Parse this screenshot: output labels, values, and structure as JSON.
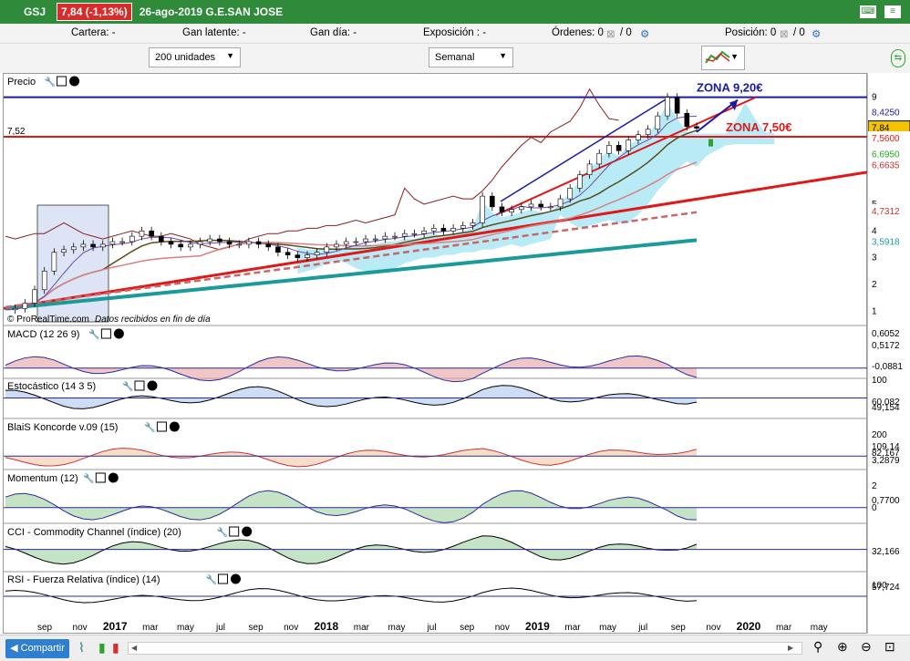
{
  "titlebar": {
    "ticker": "GSJ",
    "price_change": "7,84 (-1,13%)",
    "date_title": "26-ago-2019 G.E.SAN JOSE"
  },
  "infobar": {
    "cartera": "Cartera: -",
    "gan_latente": "Gan latente: -",
    "gan_dia": "Gan día: -",
    "exposicion": "Exposición : -",
    "ordenes": "Órdenes: 0",
    "ordenes2": "/ 0",
    "posicion": "Posición: 0",
    "posicion2": "/ 0"
  },
  "controls": {
    "units": "200 unidades",
    "period": "Semanal"
  },
  "footer": {
    "share": "Compartir"
  },
  "colors": {
    "up": "#2aa52a",
    "down": "#d03030",
    "blue_line": "#1a1aa8",
    "red_line": "#e01818",
    "teal": "#1b9a9a",
    "cloud": "#88ddee"
  },
  "chart_data": [
    {
      "type": "line",
      "title": "Precio",
      "annotations": [
        "ZONA 9,20€",
        "ZONA 7,50€"
      ],
      "left_label": "7,52",
      "credit": "© ProRealTime.com",
      "credit_note": "Datos recibidos en fin de día",
      "x_ticks": [
        "sep",
        "nov",
        "2017",
        "mar",
        "may",
        "jul",
        "sep",
        "nov",
        "2018",
        "mar",
        "may",
        "jul",
        "sep",
        "nov",
        "2019",
        "mar",
        "may",
        "jul",
        "sep",
        "nov",
        "2020",
        "mar",
        "may"
      ],
      "y_ticks": [
        1,
        2,
        3,
        4,
        5,
        9
      ],
      "ylim": [
        0.6,
        9.6
      ],
      "right_values": [
        {
          "v": "8,4250",
          "c": "#1a1aa8",
          "y": 8.43
        },
        {
          "v": "7,84",
          "c": "#f4c400",
          "y": 7.84
        },
        {
          "v": "7,5600",
          "c": "#e01818",
          "y": 7.45
        },
        {
          "v": "6,6950",
          "c": "#22aa22",
          "y": 6.85
        },
        {
          "v": "6,6635",
          "c": "#d03030",
          "y": 6.45
        },
        {
          "v": "4,7312",
          "c": "#d03030",
          "y": 4.73
        },
        {
          "v": "3,5918",
          "c": "#1b9a9a",
          "y": 3.59
        }
      ],
      "close": [
        1.05,
        1.1,
        1.3,
        1.8,
        2.5,
        3.2,
        3.3,
        3.4,
        3.5,
        3.4,
        3.5,
        3.6,
        3.6,
        3.8,
        4.0,
        3.8,
        3.6,
        3.5,
        3.4,
        3.5,
        3.6,
        3.7,
        3.6,
        3.5,
        3.5,
        3.6,
        3.5,
        3.4,
        3.2,
        3.1,
        3.0,
        3.1,
        3.2,
        3.4,
        3.5,
        3.6,
        3.6,
        3.7,
        3.7,
        3.8,
        3.8,
        3.9,
        3.9,
        4.0,
        4.1,
        4.0,
        4.1,
        4.2,
        4.3,
        5.3,
        4.9,
        4.7,
        4.8,
        4.9,
        5.0,
        4.9,
        4.9,
        5.2,
        5.6,
        6.1,
        6.5,
        6.9,
        7.2,
        7.0,
        7.4,
        7.6,
        7.8,
        8.3,
        9.0,
        8.4,
        7.9,
        7.84
      ]
    },
    {
      "type": "line",
      "title": "MACD (12 26 9)",
      "right_values": [
        "0,6052",
        "0,5172",
        "-0,0881"
      ]
    },
    {
      "type": "line",
      "title": "Estocástico (14 3 5)",
      "right_values": [
        "100",
        "60,082",
        "49,154"
      ]
    },
    {
      "type": "area",
      "title": "BlaiS Koncorde v.09 (15)",
      "right_values": [
        "200",
        "109,14",
        "82,167",
        "3,2879"
      ]
    },
    {
      "type": "area",
      "title": "Momentum (12)",
      "right_values": [
        "2",
        "0,7700",
        "0"
      ]
    },
    {
      "type": "area",
      "title": "CCI - Commodity Channel (índice) (20)",
      "right_values": [
        "32,166"
      ]
    },
    {
      "type": "line",
      "title": "RSI - Fuerza Relativa (índice) (14)",
      "right_values": [
        "100",
        "57,724"
      ]
    }
  ]
}
